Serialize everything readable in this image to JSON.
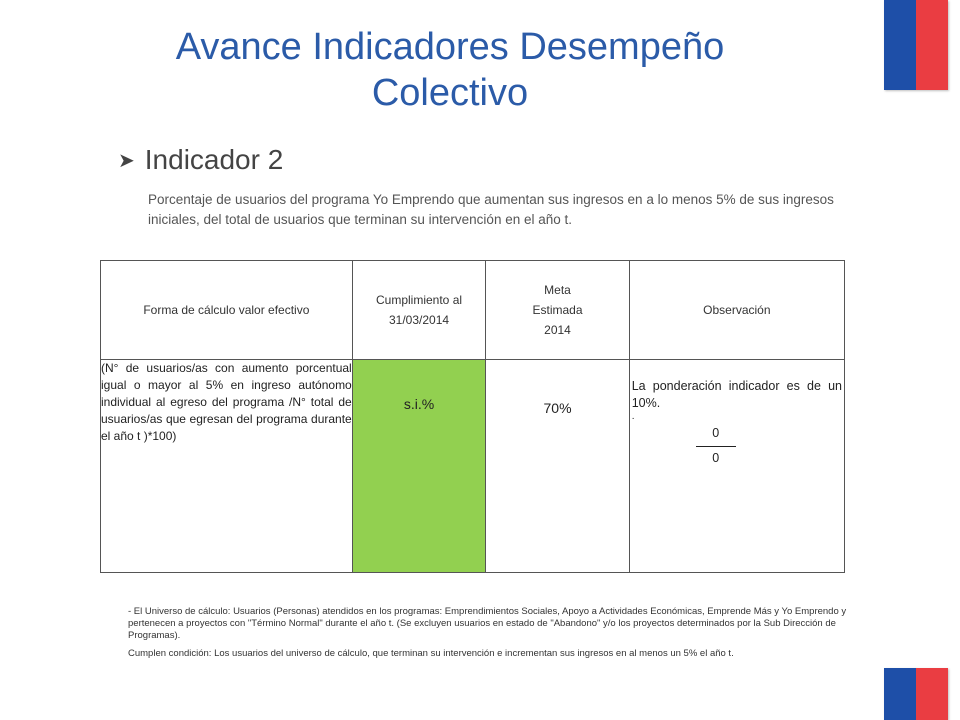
{
  "title": "Avance Indicadores Desempeño Colectivo",
  "section": {
    "bullet_label": "Indicador 2"
  },
  "description": "Porcentaje de usuarios del programa Yo Emprendo que aumentan sus ingresos en a lo menos 5% de sus ingresos iniciales, del total de usuarios que terminan su intervención en el año t.",
  "table": {
    "headers": {
      "forma": "Forma de cálculo   valor efectivo",
      "cumplimiento": "Cumplimiento al 31/03/2014",
      "meta_line1": "Meta",
      "meta_line2": "Estimada",
      "meta_line3": "2014",
      "observacion": "Observación"
    },
    "row": {
      "formula": "(N° de usuarios/as con aumento porcentual igual o mayor al 5% en ingreso autónomo individual al egreso del programa /N° total de usuarios/as que egresan del programa durante el año t )*100)",
      "cumplimiento": "s.i.%",
      "meta": "70%",
      "observacion": "La ponderación indicador es de un 10%.",
      "obs_dot": ".",
      "numerator": "0",
      "denominator": "0"
    },
    "highlight_color": "#92d050"
  },
  "notes": {
    "universe": "- El Universo de cálculo: Usuarios (Personas) atendidos en los programas: Emprendimientos Sociales, Apoyo a Actividades Económicas, Emprende Más y Yo Emprendo y pertenecen a proyectos con \"Término Normal\" durante el año t. (Se excluyen usuarios en estado de \"Abandono\" y/o los proyectos determinados por la Sub Dirección de Programas).",
    "condition": "Cumplen condición: Los usuarios del universo de cálculo, que terminan su intervención e incrementan sus ingresos en al menos un 5% el año t."
  },
  "colors": {
    "title": "#2b5ba8",
    "flag_blue": "#1e4fa8",
    "flag_red": "#ea3d42"
  }
}
